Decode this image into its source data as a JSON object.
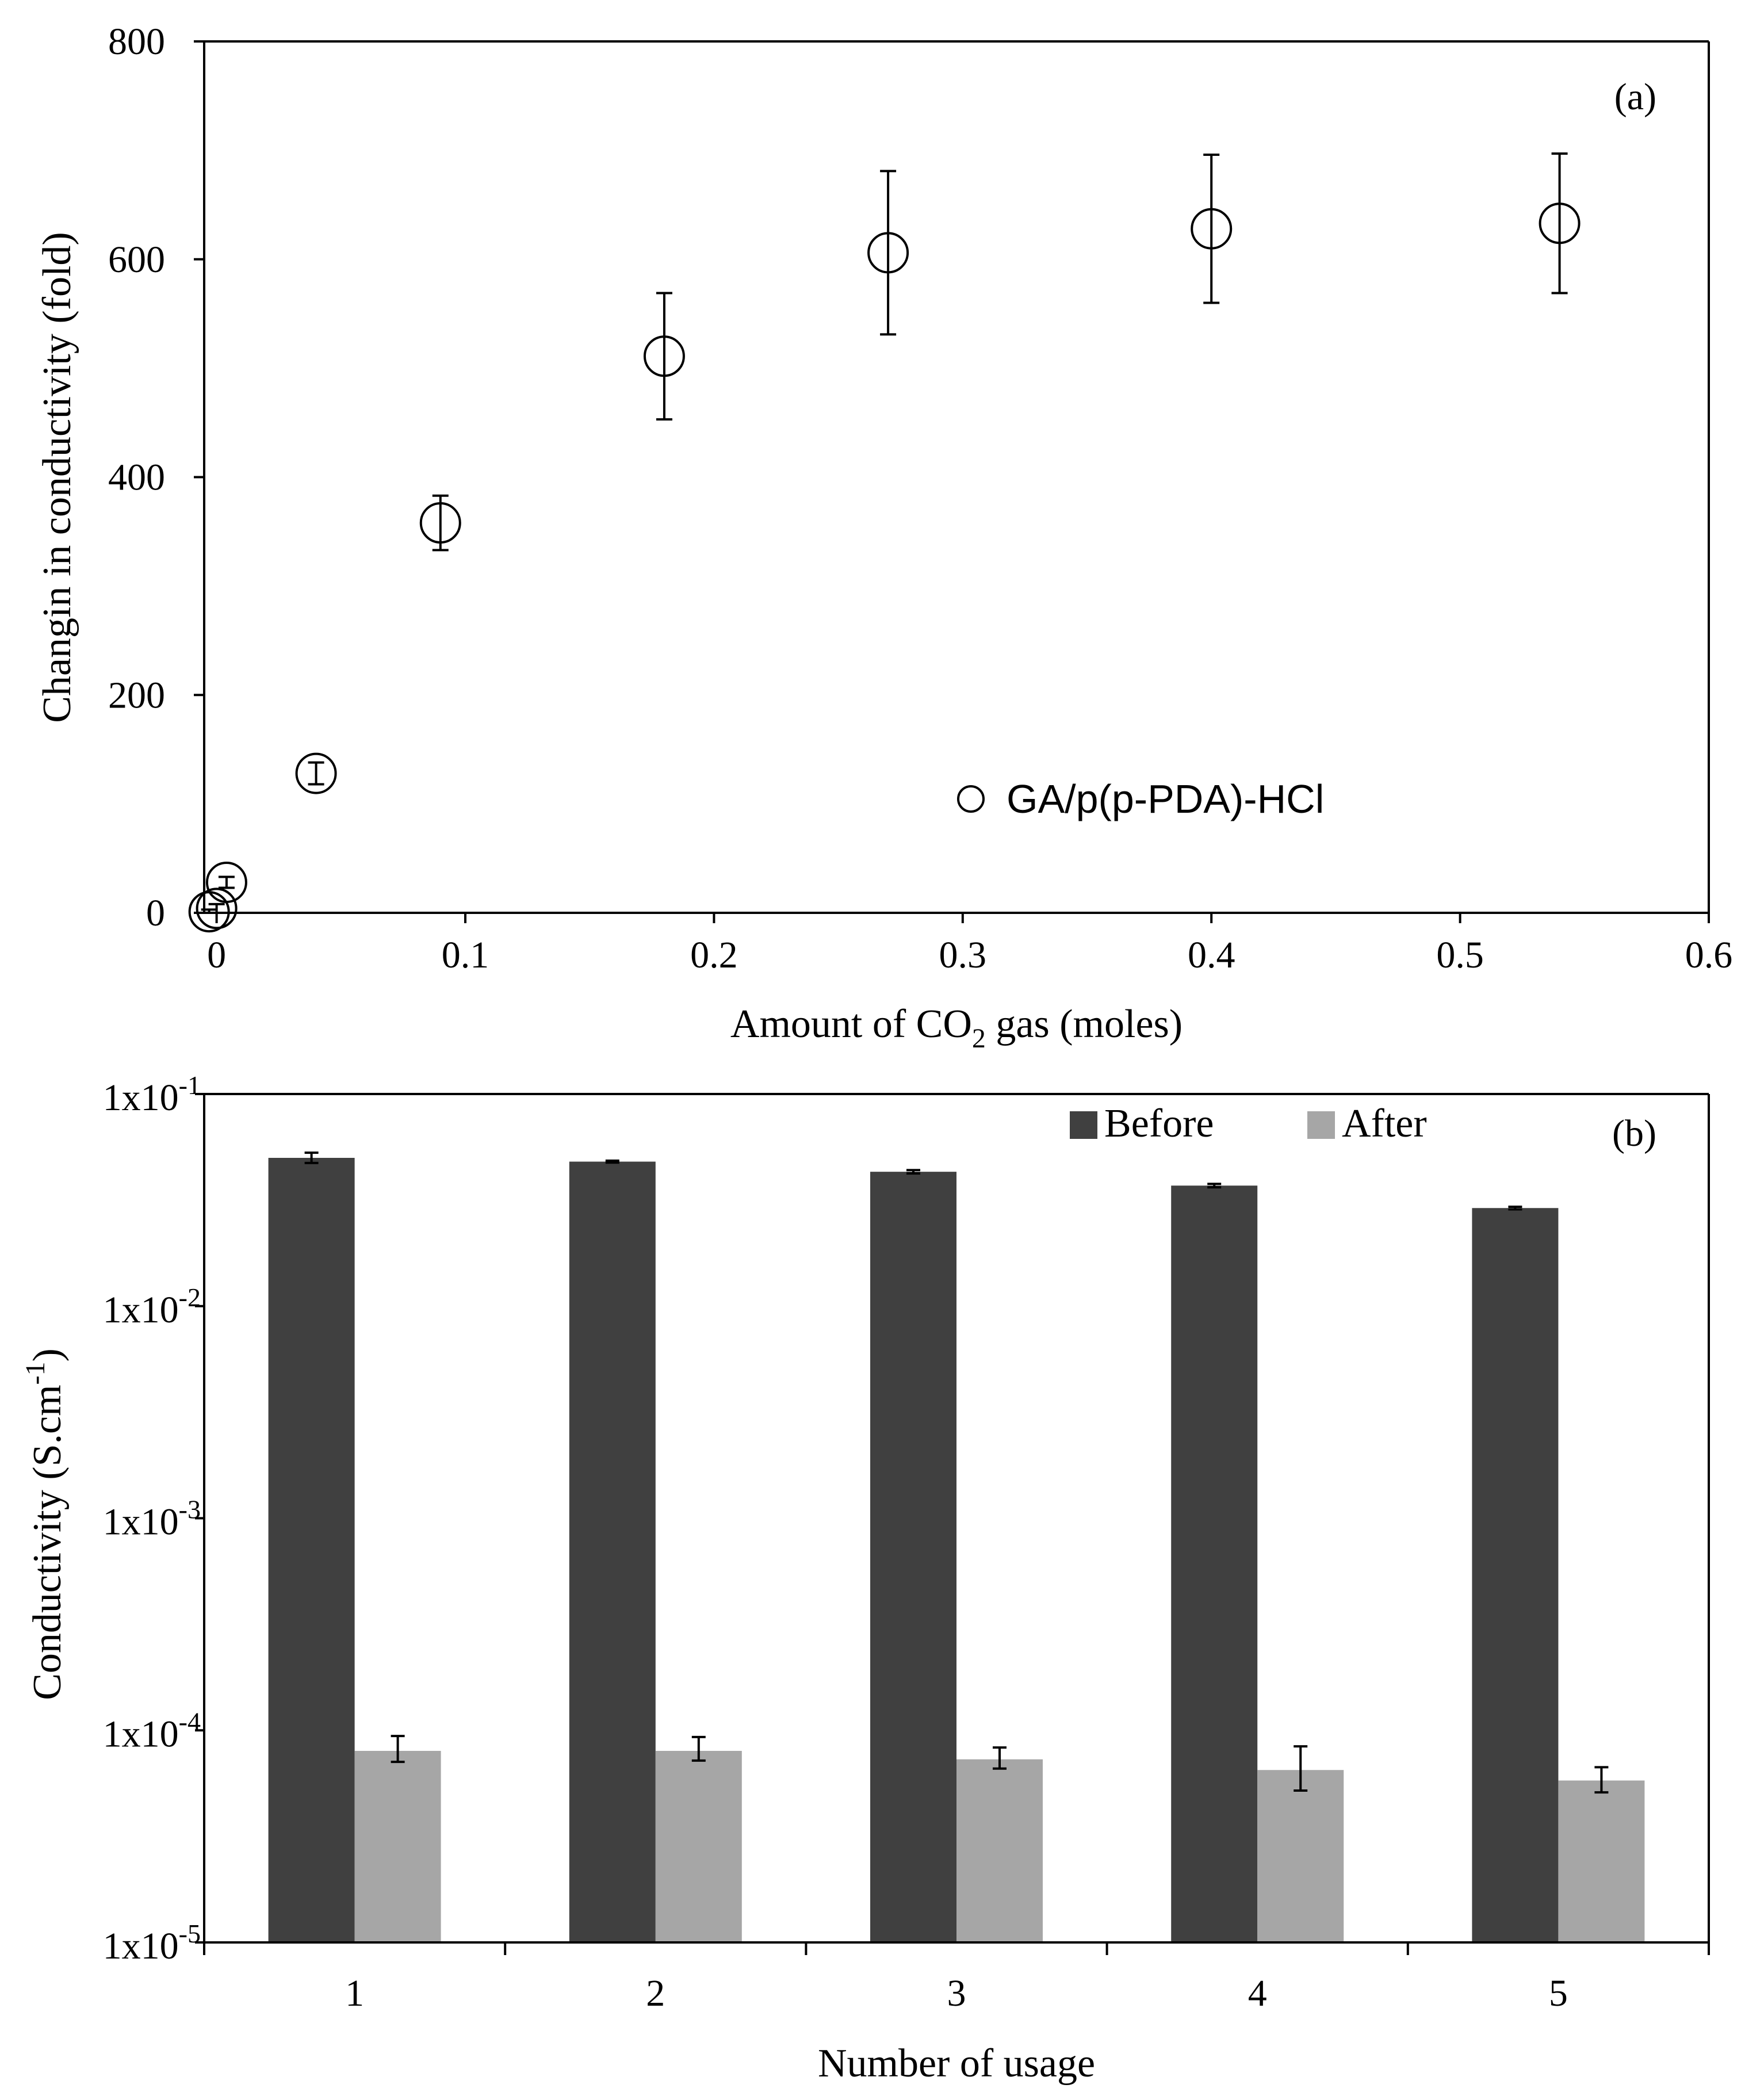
{
  "chart_data": [
    {
      "type": "scatter",
      "panel_label": "(a)",
      "title": "",
      "xlabel_parts": {
        "prefix": "Amount of CO",
        "sub": "2",
        "suffix": " gas (moles)"
      },
      "ylabel": "Changin in conductivity (fold)",
      "xlim": [
        -0.005,
        0.6
      ],
      "ylim": [
        0,
        800
      ],
      "xticks": [
        0,
        0.1,
        0.2,
        0.3,
        0.4,
        0.5,
        0.6
      ],
      "xtick_labels": [
        "0",
        "0.1",
        "0.2",
        "0.3",
        "0.4",
        "0.5",
        "0.6"
      ],
      "yticks": [
        0,
        200,
        400,
        600,
        800
      ],
      "ytick_labels": [
        "0",
        "200",
        "400",
        "600",
        "800"
      ],
      "legend": {
        "label": "GA/p(p-PDA)-HCl",
        "position": "bottom-right"
      },
      "series": [
        {
          "name": "GA/p(p-PDA)-HCl",
          "x": [
            -0.003,
            0.0,
            0.004,
            0.04,
            0.09,
            0.18,
            0.27,
            0.4,
            0.54
          ],
          "y": [
            1,
            4,
            28,
            128,
            358,
            511,
            606,
            628,
            633
          ],
          "err": [
            2,
            4,
            5,
            10,
            25,
            58,
            75,
            68,
            64
          ]
        }
      ]
    },
    {
      "type": "bar",
      "panel_label": "(b)",
      "title": "",
      "xlabel": "Number of usage",
      "ylabel_parts": {
        "prefix": "Conductivity (S.cm",
        "sup": "-1",
        "suffix": ")"
      },
      "yscale": "log",
      "ylim": [
        1e-05,
        0.1
      ],
      "ytick_labels": [
        {
          "base": "1x10",
          "exp": "-5"
        },
        {
          "base": "1x10",
          "exp": "-4"
        },
        {
          "base": "1x10",
          "exp": "-3"
        },
        {
          "base": "1x10",
          "exp": "-2"
        },
        {
          "base": "1x10",
          "exp": "-1"
        }
      ],
      "categories": [
        "1",
        "2",
        "3",
        "4",
        "5"
      ],
      "legend_position": "top-right",
      "series": [
        {
          "name": "Before",
          "color": "#404040",
          "values": [
            0.05,
            0.048,
            0.043,
            0.037,
            0.029
          ],
          "err_low": [
            0.0027,
            0.0005,
            0.0008,
            0.0007,
            0.0004
          ],
          "err_high": [
            0.0029,
            0.0005,
            0.0008,
            0.0007,
            0.0004
          ]
        },
        {
          "name": "After",
          "color": "#a6a6a6",
          "values": [
            8e-05,
            8e-05,
            7.3e-05,
            6.5e-05,
            5.8e-05
          ],
          "err_low": [
            9e-06,
            8e-06,
            7e-06,
            1.3e-05,
            7e-06
          ],
          "err_high": [
            1.4e-05,
            1.3e-05,
            1e-05,
            1.9e-05,
            9e-06
          ]
        }
      ]
    }
  ]
}
